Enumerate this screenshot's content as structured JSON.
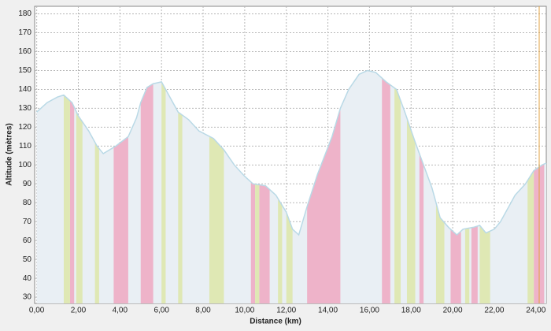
{
  "chart_data": {
    "type": "area",
    "xlabel": "Distance (km)",
    "ylabel": "Altitude (mètres)",
    "x": [
      0.0,
      0.5,
      1.0,
      1.3,
      1.7,
      2.0,
      2.5,
      2.9,
      3.2,
      3.5,
      3.8,
      4.4,
      4.8,
      5.0,
      5.3,
      5.6,
      6.0,
      6.3,
      6.8,
      7.3,
      7.8,
      8.5,
      9.0,
      9.5,
      10.0,
      10.4,
      11.0,
      11.5,
      12.0,
      12.3,
      12.6,
      13.0,
      13.5,
      14.2,
      14.6,
      15.0,
      15.5,
      15.9,
      16.3,
      16.8,
      17.3,
      17.7,
      18.2,
      18.6,
      19.0,
      19.4,
      19.8,
      20.2,
      20.5,
      21.0,
      21.3,
      21.6,
      22.0,
      22.3,
      22.7,
      23.0,
      23.5,
      23.9,
      24.3,
      24.5
    ],
    "series": [
      {
        "color": "#b9d9e6",
        "fill": "#e9eff4",
        "values": [
          128,
          133,
          136,
          137,
          133,
          126,
          118,
          110,
          106,
          108,
          110,
          115,
          125,
          133,
          141,
          143,
          144,
          138,
          128,
          124,
          118,
          114,
          108,
          100,
          94,
          90,
          89,
          84,
          75,
          66,
          63,
          78,
          95,
          115,
          130,
          140,
          148,
          150,
          149,
          144,
          140,
          128,
          112,
          100,
          88,
          72,
          67,
          63,
          66,
          67,
          68,
          64,
          66,
          70,
          78,
          84,
          90,
          97,
          100,
          101
        ]
      }
    ],
    "bands": [
      {
        "color": "#eeb3c9",
        "ranges": [
          [
            1.6,
            1.8
          ],
          [
            3.7,
            4.4
          ],
          [
            5.0,
            5.6
          ],
          [
            10.3,
            10.5
          ],
          [
            10.7,
            11.2
          ],
          [
            13.0,
            14.6
          ],
          [
            16.6,
            17.0
          ],
          [
            18.4,
            18.6
          ],
          [
            19.9,
            20.4
          ],
          [
            20.9,
            21.2
          ],
          [
            23.9,
            24.4
          ]
        ]
      },
      {
        "color": "#dfe8b4",
        "ranges": [
          [
            1.3,
            1.6
          ],
          [
            1.9,
            2.2
          ],
          [
            2.8,
            3.0
          ],
          [
            6.0,
            6.2
          ],
          [
            6.8,
            7.0
          ],
          [
            8.3,
            9.0
          ],
          [
            10.5,
            10.7
          ],
          [
            11.6,
            11.8
          ],
          [
            12.0,
            12.3
          ],
          [
            17.2,
            17.5
          ],
          [
            17.8,
            18.2
          ],
          [
            19.2,
            19.6
          ],
          [
            20.6,
            20.8
          ],
          [
            21.3,
            21.8
          ],
          [
            23.6,
            23.9
          ]
        ]
      }
    ],
    "xlim": [
      -0.1,
      24.5
    ],
    "ylim": [
      26.7,
      184
    ],
    "xticks": [
      {
        "value": 0,
        "label": "0,00"
      },
      {
        "value": 2,
        "label": "2,00"
      },
      {
        "value": 4,
        "label": "4,00"
      },
      {
        "value": 6,
        "label": "6,00"
      },
      {
        "value": 8,
        "label": "8,00"
      },
      {
        "value": 10,
        "label": "10,00"
      },
      {
        "value": 12,
        "label": "12,00"
      },
      {
        "value": 14,
        "label": "14,00"
      },
      {
        "value": 16,
        "label": "16,00"
      },
      {
        "value": 18,
        "label": "18,00"
      },
      {
        "value": 20,
        "label": "20,00"
      },
      {
        "value": 22,
        "label": "22,00"
      },
      {
        "value": 24,
        "label": "24,00"
      }
    ],
    "yticks": [
      30,
      40,
      50,
      60,
      70,
      80,
      90,
      100,
      110,
      120,
      130,
      140,
      150,
      160,
      170,
      180
    ],
    "grid": true
  }
}
